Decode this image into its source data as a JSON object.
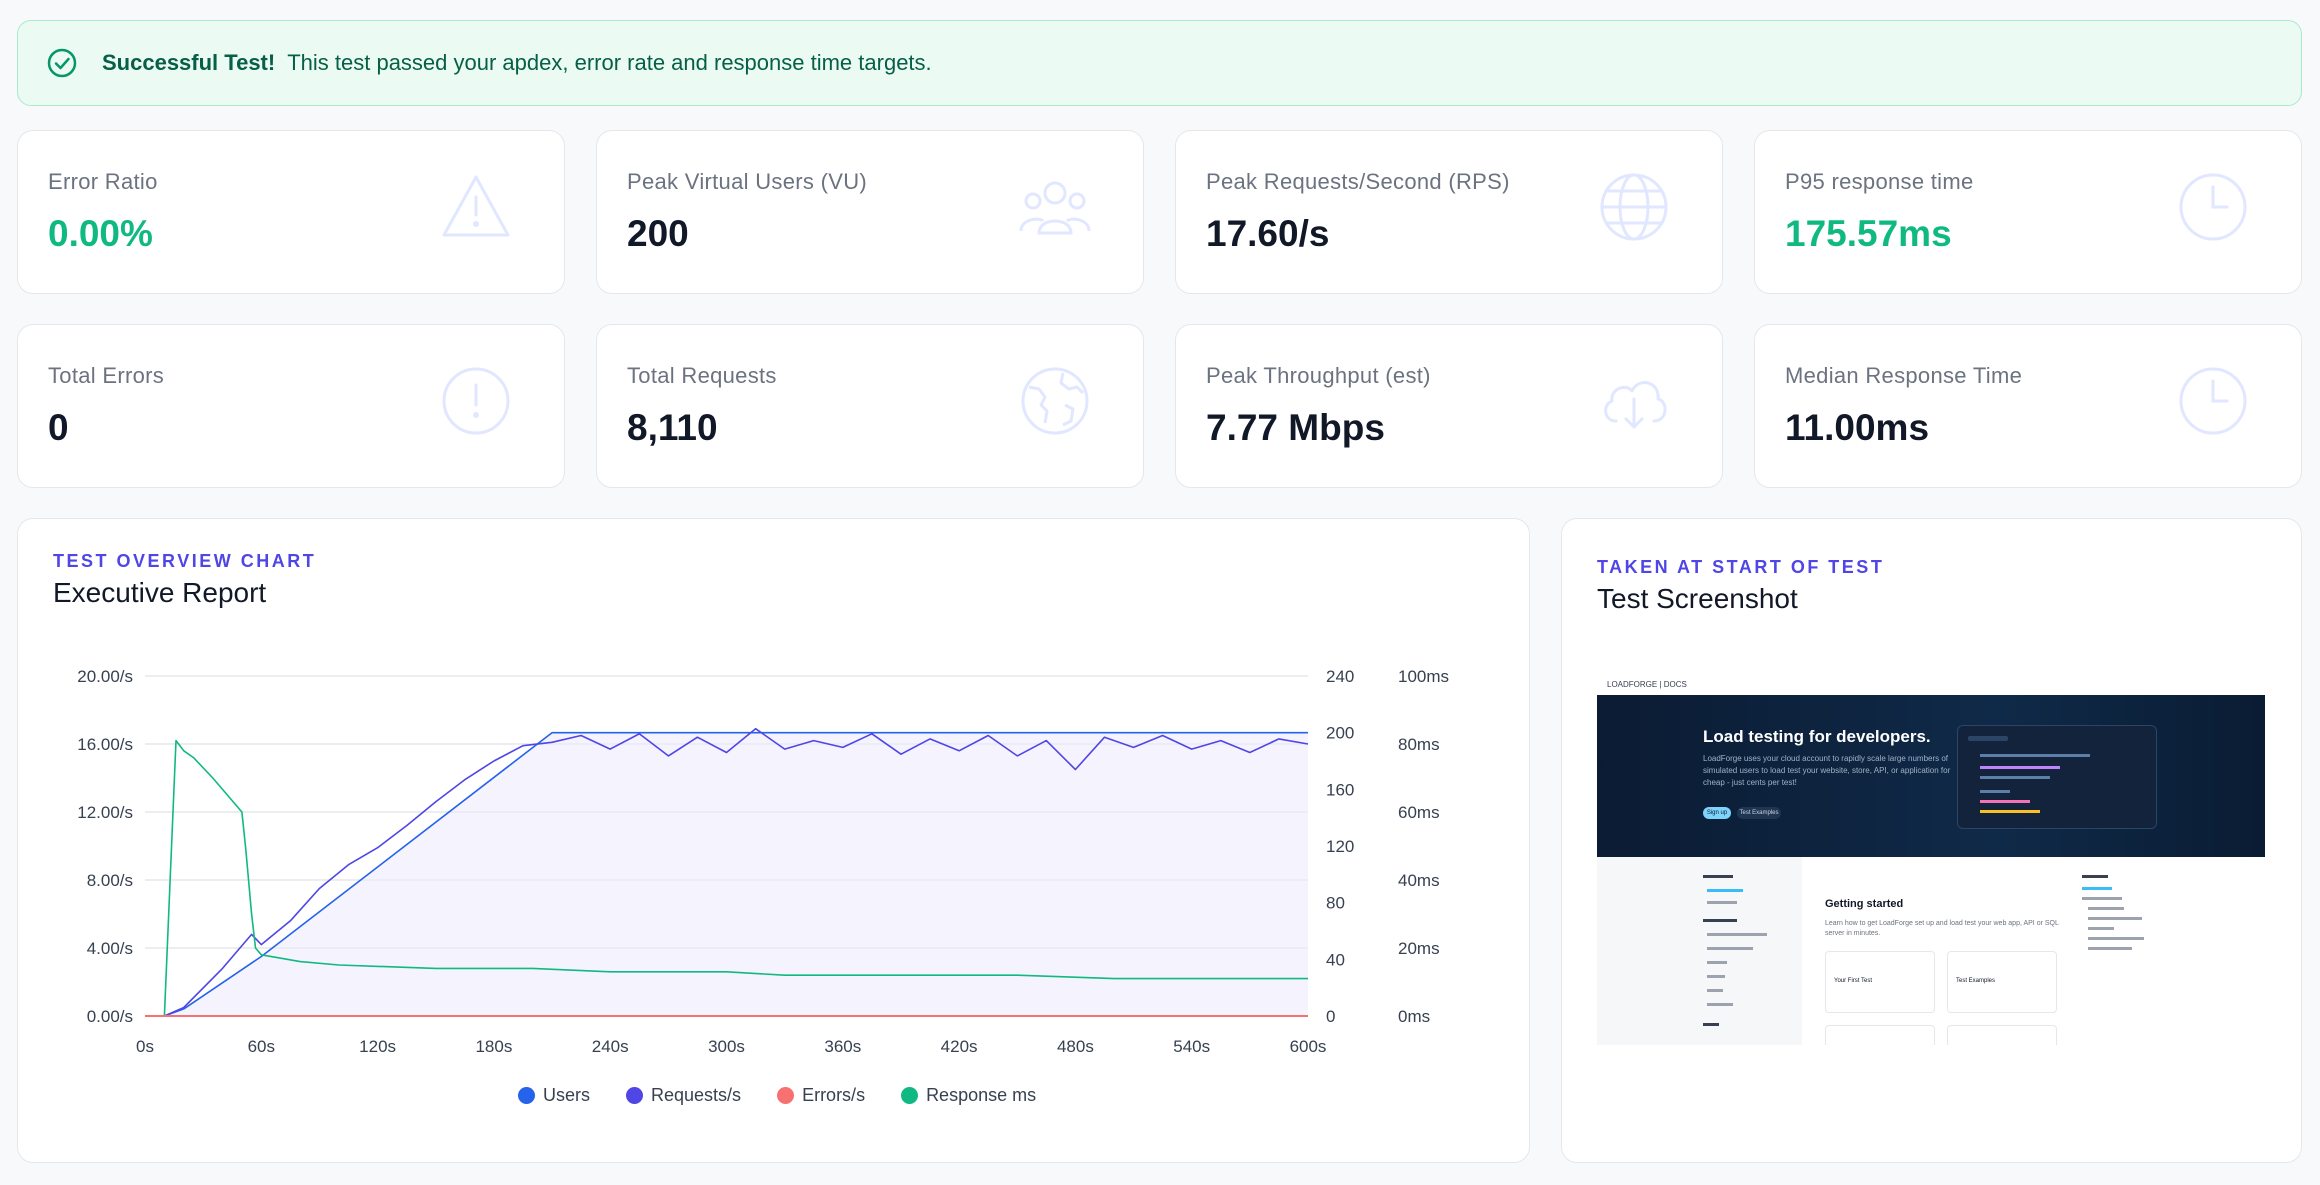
{
  "alert": {
    "title": "Successful Test!",
    "message": "This test passed your apdex, error rate and response time targets."
  },
  "stats": [
    {
      "label": "Error Ratio",
      "value": "0.00%",
      "icon": "warning-triangle-icon",
      "value_color": "#10b981"
    },
    {
      "label": "Peak Virtual Users (VU)",
      "value": "200",
      "icon": "users-icon"
    },
    {
      "label": "Peak Requests/Second (RPS)",
      "value": "17.60/s",
      "icon": "globe-icon"
    },
    {
      "label": "P95 response time",
      "value": "175.57ms",
      "icon": "clock-icon",
      "value_color": "#10b981"
    },
    {
      "label": "Total Errors",
      "value": "0",
      "icon": "exclamation-circle-icon"
    },
    {
      "label": "Total Requests",
      "value": "8,110",
      "icon": "earth-icon"
    },
    {
      "label": "Peak Throughput (est)",
      "value": "7.77 Mbps",
      "icon": "cloud-download-icon"
    },
    {
      "label": "Median Response Time",
      "value": "11.00ms",
      "icon": "clock-icon"
    }
  ],
  "overview": {
    "eyebrow": "TEST OVERVIEW CHART",
    "title": "Executive Report"
  },
  "shot": {
    "eyebrow": "TAKEN AT START OF TEST",
    "title": "Test Screenshot",
    "site_logo": "LOADFORGE | DOCS",
    "hero_title": "Load testing for developers.",
    "hero_text": "LoadForge uses your cloud account to rapidly scale large numbers of simulated users to load test your website, store, API, or application for cheap - just cents per test!",
    "btn_signup": "Sign up",
    "btn_examples": "Test Examples",
    "doc_title": "Getting started",
    "doc_text": "Learn how to get LoadForge set up and load test your web app, API or SQL server in minutes.",
    "box1": "Your First Test",
    "box2": "Test Examples"
  },
  "chart_data": {
    "type": "line",
    "x_ticks": [
      "0s",
      "60s",
      "120s",
      "180s",
      "240s",
      "300s",
      "360s",
      "420s",
      "480s",
      "540s",
      "600s"
    ],
    "y_left_ticks": [
      "0.00/s",
      "4.00/s",
      "8.00/s",
      "12.00/s",
      "16.00/s",
      "20.00/s"
    ],
    "y_users_ticks": [
      "0",
      "40",
      "80",
      "120",
      "160",
      "200",
      "240"
    ],
    "y_ms_ticks": [
      "0ms",
      "20ms",
      "40ms",
      "60ms",
      "80ms",
      "100ms"
    ],
    "xlim": [
      0,
      600
    ],
    "ylim_rps": [
      0,
      20
    ],
    "ylim_users": [
      0,
      240
    ],
    "ylim_ms": [
      0,
      100
    ],
    "legend_position": "bottom",
    "series": [
      {
        "name": "Users",
        "color": "#2563eb",
        "axis": "users",
        "x": [
          0,
          10,
          20,
          60,
          210,
          600
        ],
        "y": [
          0,
          0,
          5,
          42,
          200,
          200
        ]
      },
      {
        "name": "Requests/s",
        "color": "#4f46e5",
        "axis": "rps",
        "x": [
          0,
          10,
          20,
          40,
          55,
          60,
          75,
          90,
          105,
          120,
          135,
          150,
          165,
          180,
          195,
          210,
          225,
          240,
          255,
          270,
          285,
          300,
          315,
          330,
          345,
          360,
          375,
          390,
          405,
          420,
          435,
          450,
          465,
          480,
          495,
          510,
          525,
          540,
          555,
          570,
          585,
          600
        ],
        "y": [
          0,
          0,
          0.5,
          2.8,
          4.8,
          4.2,
          5.6,
          7.5,
          8.9,
          9.9,
          11.2,
          12.6,
          13.9,
          15.0,
          15.9,
          16.1,
          16.5,
          15.7,
          16.6,
          15.3,
          16.4,
          15.5,
          16.9,
          15.7,
          16.2,
          15.8,
          16.6,
          15.4,
          16.3,
          15.6,
          16.5,
          15.3,
          16.2,
          14.5,
          16.4,
          15.8,
          16.5,
          15.7,
          16.2,
          15.5,
          16.3,
          16.0
        ]
      },
      {
        "name": "Errors/s",
        "color": "#f87171",
        "axis": "rps",
        "x": [
          0,
          600
        ],
        "y": [
          0,
          0
        ]
      },
      {
        "name": "Response ms",
        "color": "#10b981",
        "axis": "ms",
        "x": [
          0,
          10,
          16,
          20,
          25,
          35,
          50,
          52,
          55,
          57,
          60,
          70,
          80,
          100,
          150,
          200,
          240,
          300,
          330,
          350,
          400,
          450,
          500,
          550,
          600
        ],
        "y": [
          0,
          0,
          81,
          78,
          76,
          70,
          60,
          49,
          30,
          20,
          18,
          17,
          16,
          15,
          14,
          14,
          13,
          13,
          12,
          12,
          12,
          12,
          11,
          11,
          11
        ]
      }
    ]
  }
}
